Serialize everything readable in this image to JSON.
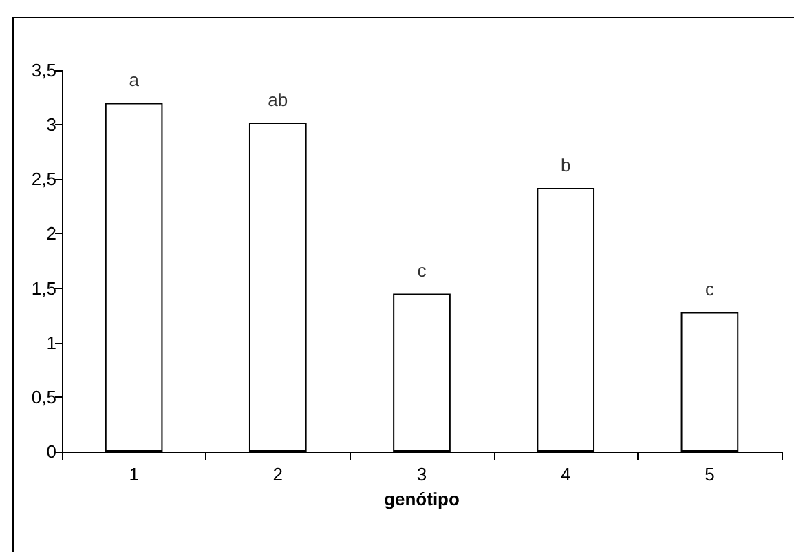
{
  "chart_data": {
    "type": "bar",
    "xlabel": "genótipo",
    "categories": [
      "1",
      "2",
      "3",
      "4",
      "5"
    ],
    "values": [
      3.2,
      3.02,
      1.45,
      2.42,
      1.28
    ],
    "color": "#ffffff",
    "ylim": [
      0,
      3.5
    ],
    "yticks": [
      0,
      {
        "value": 0.5,
        "label": "0,5"
      },
      1,
      {
        "value": 1.5,
        "label": "1,5"
      },
      2,
      {
        "value": 2.5,
        "label": "2,5"
      },
      3,
      {
        "value": 3.5,
        "label": "3,5"
      }
    ],
    "grid": false,
    "annotations": [
      {
        "text": "a",
        "x": "1",
        "y": 3.2
      },
      {
        "text": "ab",
        "x": "2",
        "y": 3.02
      },
      {
        "text": "c",
        "x": "3",
        "y": 1.45
      },
      {
        "text": "b",
        "x": "4",
        "y": 2.42
      },
      {
        "text": "c",
        "x": "5",
        "y": 1.28
      }
    ]
  }
}
